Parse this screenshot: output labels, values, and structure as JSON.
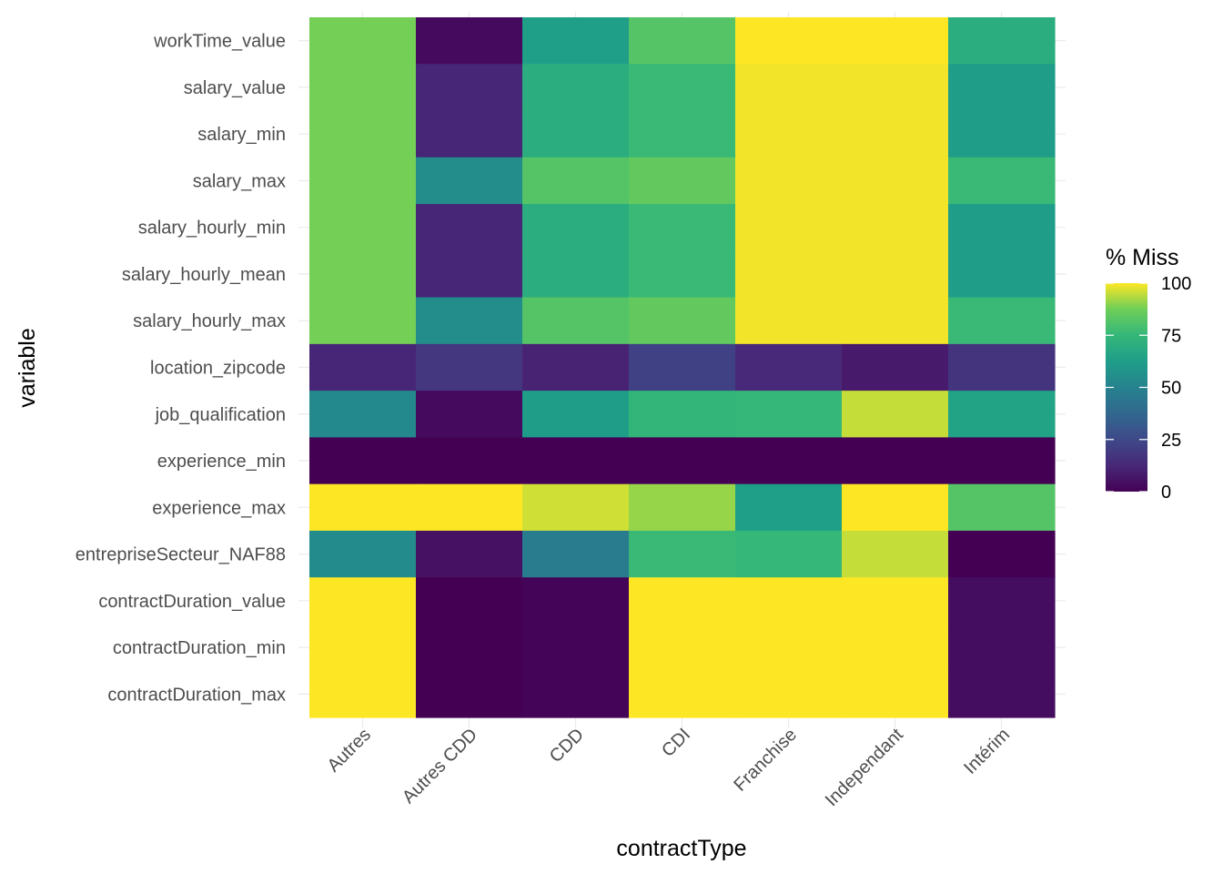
{
  "chart_data": {
    "type": "heatmap",
    "title": "",
    "xlabel": "contractType",
    "ylabel": "variable",
    "x_categories": [
      "Autres",
      "Autres CDD",
      "CDD",
      "CDI",
      "Franchise",
      "Independant",
      "Intérim"
    ],
    "y_categories": [
      "workTime_value",
      "salary_value",
      "salary_min",
      "salary_max",
      "salary_hourly_min",
      "salary_hourly_mean",
      "salary_hourly_max",
      "location_zipcode",
      "job_qualification",
      "experience_min",
      "experience_max",
      "entrepriseSecteur_NAF88",
      "contractDuration_value",
      "contractDuration_min",
      "contractDuration_max"
    ],
    "values": [
      [
        88,
        3,
        63,
        82,
        100,
        100,
        70
      ],
      [
        88,
        12,
        70,
        76,
        99,
        99,
        62
      ],
      [
        88,
        12,
        70,
        76,
        99,
        99,
        62
      ],
      [
        88,
        55,
        82,
        85,
        99,
        99,
        76
      ],
      [
        88,
        12,
        70,
        76,
        99,
        99,
        62
      ],
      [
        88,
        12,
        70,
        76,
        99,
        99,
        62
      ],
      [
        88,
        55,
        82,
        85,
        99,
        99,
        76
      ],
      [
        12,
        18,
        11,
        22,
        13,
        8,
        17
      ],
      [
        53,
        3,
        62,
        74,
        75,
        95,
        65
      ],
      [
        0,
        0,
        0,
        0,
        0,
        0,
        0
      ],
      [
        100,
        100,
        96,
        91,
        63,
        100,
        82
      ],
      [
        54,
        5,
        47,
        76,
        75,
        95,
        0
      ],
      [
        100,
        0,
        1,
        100,
        100,
        100,
        4
      ],
      [
        100,
        0,
        1,
        100,
        100,
        100,
        4
      ],
      [
        100,
        0,
        1,
        100,
        100,
        100,
        4
      ]
    ],
    "colorscale": "viridis",
    "value_range": [
      0,
      100
    ],
    "legend": {
      "title": "% Miss",
      "ticks": [
        "0",
        "25",
        "50",
        "75",
        "100"
      ],
      "tick_values": [
        0,
        25,
        50,
        75,
        100
      ],
      "position": "right"
    },
    "grid": true
  }
}
